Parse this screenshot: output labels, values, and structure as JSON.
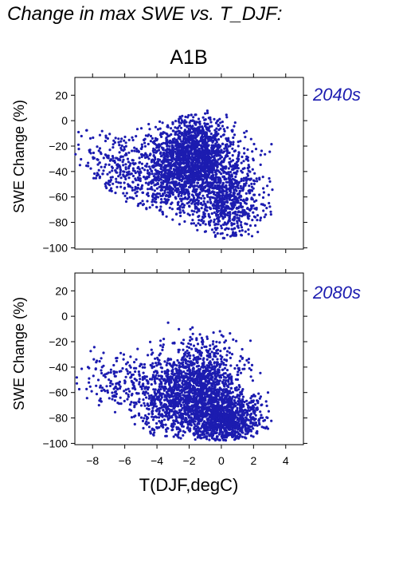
{
  "page_title": "Change in max SWE vs. T_DJF:",
  "colors": {
    "points": "#1c1cb0",
    "period_label": "#1c1cb0",
    "axis": "#000000"
  },
  "chart_data": [
    {
      "type": "scatter",
      "title": "A1B",
      "panel_label": "2040s",
      "ylabel": "SWE Change (%)",
      "xlabel": "",
      "xlim": [
        -9.1,
        5.1
      ],
      "ylim": [
        -101,
        34
      ],
      "xticks": [
        -8,
        -6,
        -4,
        -2,
        0,
        2,
        4
      ],
      "yticks": [
        20,
        0,
        -20,
        -40,
        -60,
        -80,
        -100
      ],
      "ytick_labels": [
        "20",
        "0",
        "−20",
        "−40",
        "−60",
        "−80",
        "−100"
      ],
      "xtick_labels": [],
      "grid": false,
      "legend": "none",
      "point_cloud": {
        "n": 3000,
        "x_range": [
          -9.1,
          3.2
        ],
        "y_range": [
          -93,
          8
        ],
        "core": [
          {
            "x": -1.5,
            "y": -28,
            "sx": 1.2,
            "sy": 16,
            "w": 0.45
          },
          {
            "x": 0.2,
            "y": -62,
            "sx": 1.2,
            "sy": 17,
            "w": 0.25
          },
          {
            "x": -3.2,
            "y": -40,
            "sx": 1.0,
            "sy": 18,
            "w": 0.2
          },
          {
            "x": -6.5,
            "y": -40,
            "sx": 1.3,
            "sy": 15,
            "w": 0.1
          }
        ],
        "upper_edge": [
          [
            -9.1,
            -8
          ],
          [
            -6,
            -3
          ],
          [
            -4,
            0
          ],
          [
            -1,
            8
          ],
          [
            1,
            6
          ],
          [
            2,
            0
          ],
          [
            3,
            -15
          ]
        ],
        "lower_edge": [
          [
            -9.1,
            -35
          ],
          [
            -6,
            -65
          ],
          [
            -4,
            -75
          ],
          [
            -2,
            -85
          ],
          [
            0,
            -93
          ],
          [
            2,
            -92
          ],
          [
            3,
            -88
          ]
        ]
      }
    },
    {
      "type": "scatter",
      "title": "",
      "panel_label": "2080s",
      "ylabel": "SWE Change (%)",
      "xlabel": "T(DJF,degC)",
      "xlim": [
        -9.1,
        5.1
      ],
      "ylim": [
        -101,
        34
      ],
      "xticks": [
        -8,
        -6,
        -4,
        -2,
        0,
        2,
        4
      ],
      "yticks": [
        20,
        0,
        -20,
        -40,
        -60,
        -80,
        -100
      ],
      "ytick_labels": [
        "20",
        "0",
        "−20",
        "−40",
        "−60",
        "−80",
        "−100"
      ],
      "xtick_labels": [
        "−8",
        "−6",
        "−4",
        "−2",
        "0",
        "2",
        "4"
      ],
      "grid": false,
      "legend": "none",
      "point_cloud": {
        "n": 3000,
        "x_range": [
          -9.1,
          3.2
        ],
        "y_range": [
          -98,
          -3
        ],
        "core": [
          {
            "x": -1.2,
            "y": -55,
            "sx": 1.3,
            "sy": 18,
            "w": 0.4
          },
          {
            "x": 0.3,
            "y": -82,
            "sx": 1.1,
            "sy": 9,
            "w": 0.35
          },
          {
            "x": -3.0,
            "y": -65,
            "sx": 1.1,
            "sy": 17,
            "w": 0.18
          },
          {
            "x": -6.3,
            "y": -55,
            "sx": 1.3,
            "sy": 14,
            "w": 0.07
          }
        ],
        "upper_edge": [
          [
            -9.1,
            -30
          ],
          [
            -6,
            -10
          ],
          [
            -4,
            -3
          ],
          [
            -2,
            -6
          ],
          [
            0,
            -8
          ],
          [
            2,
            -20
          ],
          [
            3,
            -50
          ]
        ],
        "lower_edge": [
          [
            -9.1,
            -60
          ],
          [
            -7,
            -75
          ],
          [
            -5,
            -92
          ],
          [
            -3,
            -96
          ],
          [
            0,
            -98
          ],
          [
            2,
            -96
          ],
          [
            3,
            -90
          ]
        ]
      }
    }
  ]
}
